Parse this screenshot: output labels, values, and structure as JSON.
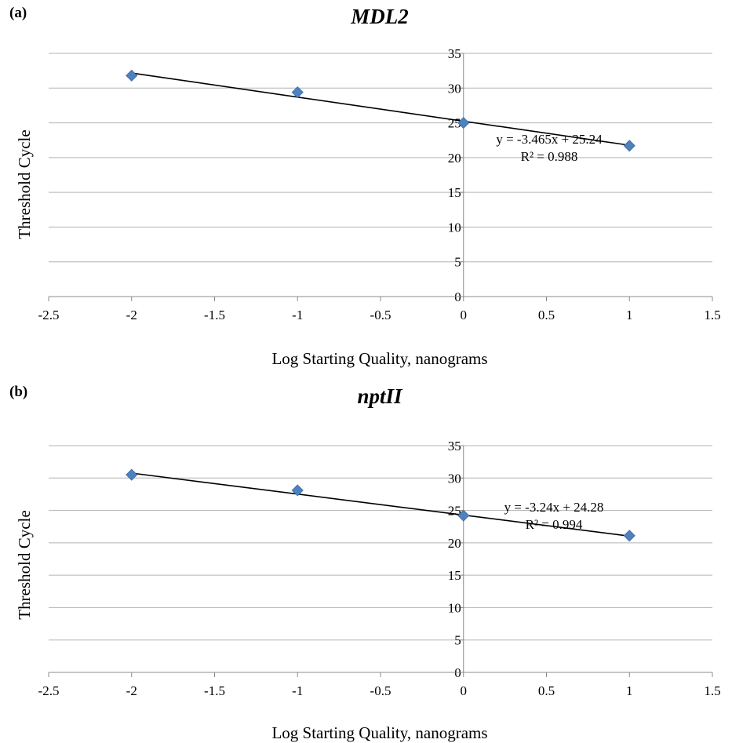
{
  "colors": {
    "marker": "#4f81bd",
    "trendline": "#000000",
    "grid": "#b3b3b3"
  },
  "chart_data": [
    {
      "type": "scatter",
      "panel_label": "(a)",
      "title": "MDL2",
      "xlabel": "Log Starting Quality, nanograms",
      "ylabel": "Threshold Cycle",
      "xlim": [
        -2.5,
        1.5
      ],
      "ylim": [
        0,
        35
      ],
      "x_ticks": [
        -2.5,
        -2,
        -1.5,
        -1,
        -0.5,
        0,
        0.5,
        1,
        1.5
      ],
      "x_tick_labels": [
        "-2.5",
        "-2",
        "-1.5",
        "-1",
        "-0.5",
        "0",
        "0.5",
        "1",
        "1.5"
      ],
      "y_ticks": [
        0,
        5,
        10,
        15,
        20,
        25,
        30,
        35
      ],
      "y_tick_labels": [
        "0",
        "5",
        "10",
        "15",
        "20",
        "25",
        "30",
        "35"
      ],
      "grid": "horizontal",
      "series": [
        {
          "x": [
            -2,
            -1,
            0,
            1
          ],
          "y": [
            31.8,
            29.4,
            25.0,
            21.7
          ]
        }
      ],
      "trendline": {
        "slope": -3.465,
        "intercept": 25.24,
        "x_range": [
          -2,
          1
        ]
      },
      "equation_text": "y = -3.465x + 25.24",
      "r2_text": "R² = 0.988"
    },
    {
      "type": "scatter",
      "panel_label": "(b)",
      "title": "nptII",
      "xlabel": "Log Starting Quality, nanograms",
      "ylabel": "Threshold Cycle",
      "xlim": [
        -2.5,
        1.5
      ],
      "ylim": [
        0,
        35
      ],
      "x_ticks": [
        -2.5,
        -2,
        -1.5,
        -1,
        -0.5,
        0,
        0.5,
        1,
        1.5
      ],
      "x_tick_labels": [
        "-2.5",
        "-2",
        "-1.5",
        "-1",
        "-0.5",
        "0",
        "0.5",
        "1",
        "1.5"
      ],
      "y_ticks": [
        0,
        5,
        10,
        15,
        20,
        25,
        30,
        35
      ],
      "y_tick_labels": [
        "0",
        "5",
        "10",
        "15",
        "20",
        "25",
        "30",
        "35"
      ],
      "grid": "horizontal",
      "series": [
        {
          "x": [
            -2,
            -1,
            0,
            1
          ],
          "y": [
            30.5,
            28.1,
            24.2,
            21.1
          ]
        }
      ],
      "trendline": {
        "slope": -3.24,
        "intercept": 24.28,
        "x_range": [
          -2,
          1
        ]
      },
      "equation_text": "y = -3.24x + 24.28",
      "r2_text": "R² = 0.994"
    }
  ]
}
